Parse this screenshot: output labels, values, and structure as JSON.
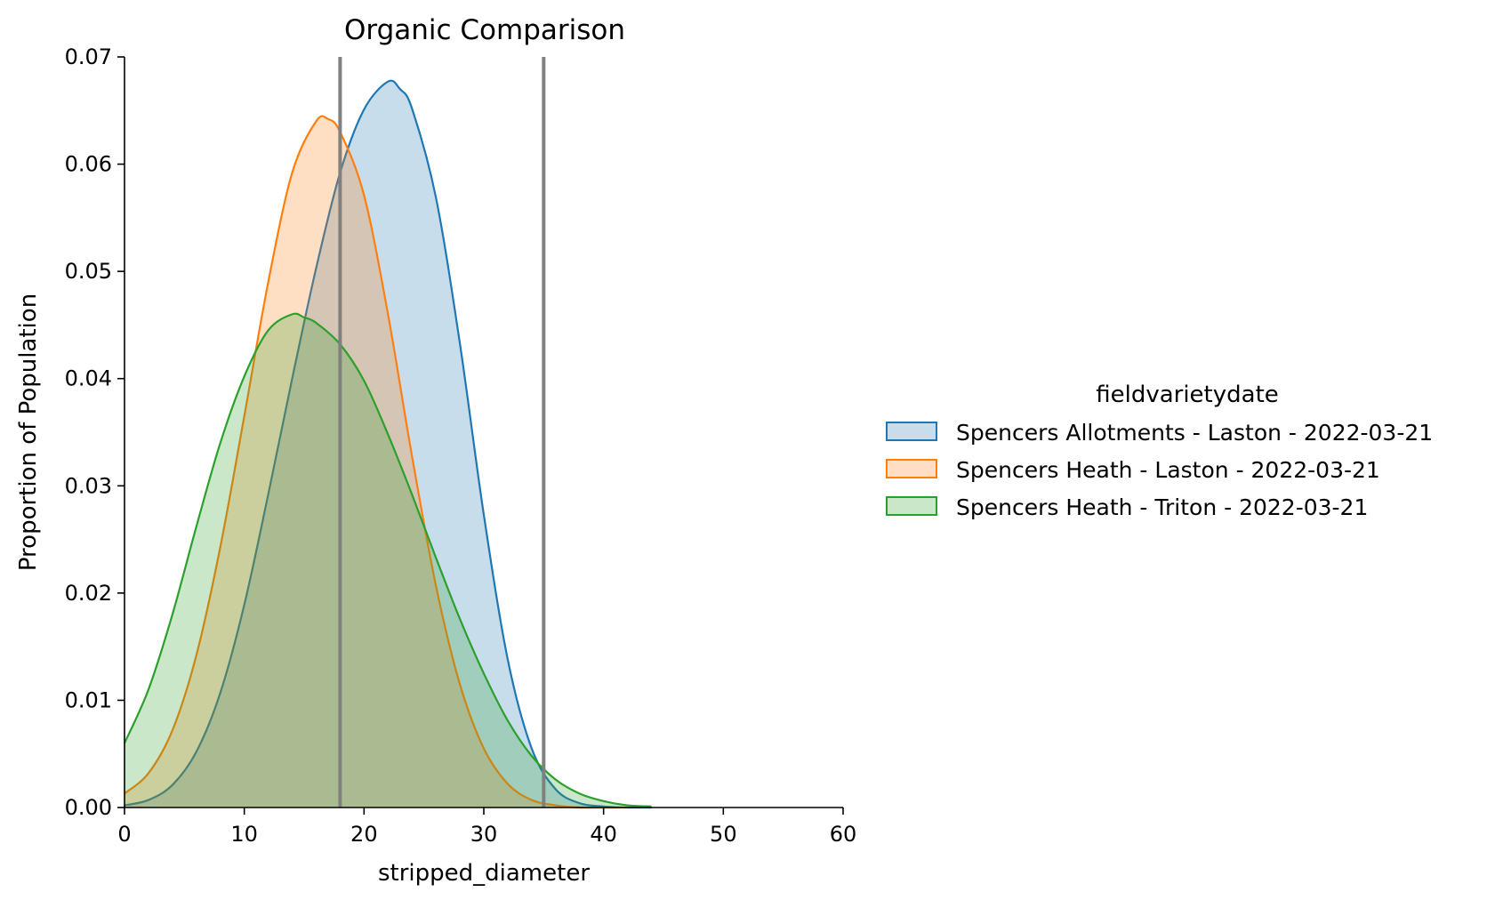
{
  "chart_data": {
    "type": "area",
    "title": "Organic Comparison",
    "xlabel": "stripped_diameter",
    "ylabel": "Proportion of Population",
    "xlim": [
      0,
      60
    ],
    "ylim": [
      0,
      0.07
    ],
    "x_ticks": [
      0,
      10,
      20,
      30,
      40,
      50,
      60
    ],
    "x_tick_labels": [
      "0",
      "10",
      "20",
      "30",
      "40",
      "50",
      "60"
    ],
    "y_ticks": [
      0,
      0.01,
      0.02,
      0.03,
      0.04,
      0.05,
      0.06,
      0.07
    ],
    "y_tick_labels": [
      "0.00",
      "0.01",
      "0.02",
      "0.03",
      "0.04",
      "0.05",
      "0.06",
      "0.07"
    ],
    "grid": false,
    "legend": {
      "title": "fieldvarietydate",
      "placement": "right, outside plot"
    },
    "reference_lines_x": [
      18,
      35
    ],
    "reference_line_color": "#808080",
    "series": [
      {
        "name": "Spencers Allotments - Laston - 2022-03-21",
        "color": "#1f77b4",
        "x": [
          0,
          2,
          4,
          6,
          8,
          10,
          12,
          14,
          16,
          18,
          20,
          22,
          23,
          24,
          26,
          28,
          30,
          32,
          34,
          36,
          38,
          40,
          42,
          44
        ],
        "y": [
          0.0002,
          0.0007,
          0.0021,
          0.0052,
          0.0107,
          0.0189,
          0.0292,
          0.04,
          0.0503,
          0.0592,
          0.0651,
          0.0677,
          0.067,
          0.0652,
          0.0569,
          0.0433,
          0.0273,
          0.0138,
          0.0055,
          0.0017,
          0.0004,
          0.0001,
          0.0,
          0.0
        ]
      },
      {
        "name": "Spencers Heath - Laston - 2022-03-21",
        "color": "#ff7f0e",
        "x": [
          0,
          2,
          4,
          6,
          8,
          10,
          12,
          14,
          16,
          17,
          18,
          20,
          22,
          24,
          26,
          28,
          30,
          32,
          34,
          36,
          38,
          40,
          42
        ],
        "y": [
          0.0013,
          0.0032,
          0.0072,
          0.0142,
          0.0243,
          0.0365,
          0.049,
          0.0592,
          0.064,
          0.0642,
          0.063,
          0.0571,
          0.046,
          0.0328,
          0.0207,
          0.0115,
          0.0055,
          0.0022,
          0.0007,
          0.0002,
          0.0,
          0.0,
          0.0
        ]
      },
      {
        "name": "Spencers Heath - Triton - 2022-03-21",
        "color": "#2ca02c",
        "x": [
          0,
          2,
          4,
          6,
          8,
          10,
          12,
          14,
          15,
          16,
          18,
          20,
          22,
          24,
          26,
          28,
          30,
          32,
          34,
          36,
          38,
          40,
          42,
          44
        ],
        "y": [
          0.006,
          0.011,
          0.018,
          0.0262,
          0.034,
          0.0402,
          0.0445,
          0.046,
          0.0457,
          0.0452,
          0.0432,
          0.0398,
          0.0348,
          0.0292,
          0.0233,
          0.0176,
          0.0125,
          0.0081,
          0.0048,
          0.0026,
          0.0013,
          0.0006,
          0.0002,
          0.0001
        ]
      }
    ]
  }
}
